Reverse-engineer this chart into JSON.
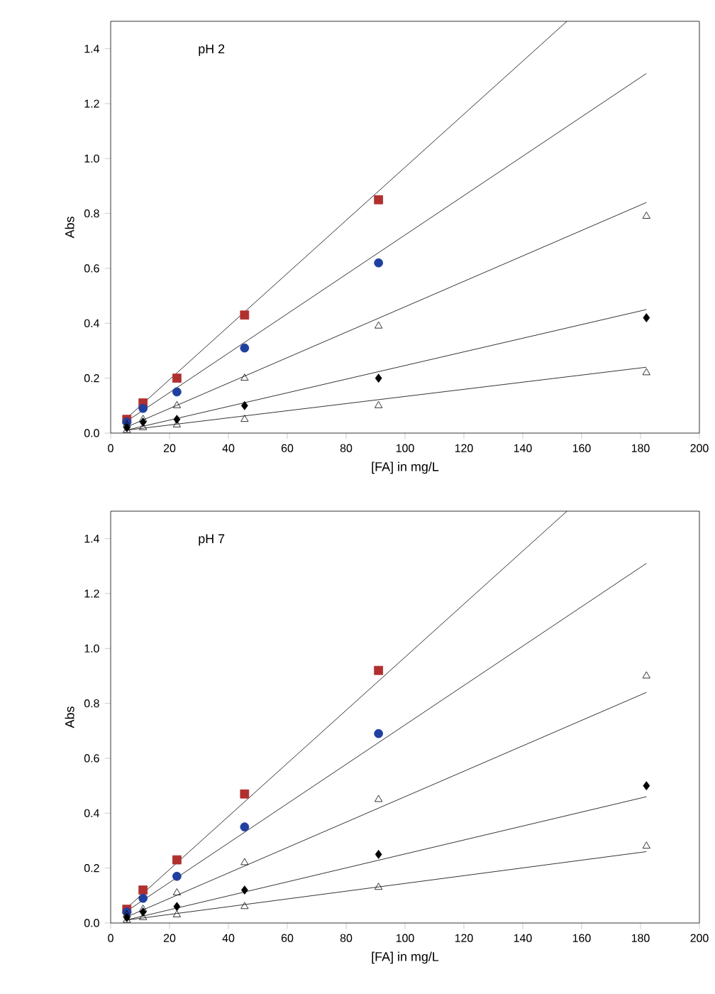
{
  "chart_data": [
    {
      "type": "scatter",
      "xlabel": "[FA] in mg/L",
      "ylabel": "Abs",
      "annotations": [
        "pH 2"
      ],
      "xlim": [
        0,
        200
      ],
      "ylim": [
        0,
        1.5
      ],
      "xticks": [
        0,
        20,
        40,
        60,
        80,
        100,
        120,
        140,
        160,
        180,
        200
      ],
      "yticks": [
        {
          "value": 0,
          "label": "0.0"
        },
        {
          "value": 0.2,
          "label": "0.2"
        },
        {
          "value": 0.4,
          "label": "0.4"
        },
        {
          "value": 0.6,
          "label": "0.6"
        },
        {
          "value": 0.8,
          "label": "0.8"
        },
        {
          "value": 1.0,
          "label": "1.0"
        },
        {
          "value": 1.2,
          "label": "1.2"
        },
        {
          "value": 1.4,
          "label": "1.4"
        }
      ],
      "grid": false,
      "legend": false,
      "x": [
        5.5,
        11,
        22.5,
        45.5,
        91,
        182
      ],
      "series": [
        {
          "marker": "square",
          "color": "#b03030",
          "values": [
            0.05,
            0.11,
            0.2,
            0.43,
            0.85,
            null
          ]
        },
        {
          "marker": "circle",
          "color": "#2040a0",
          "values": [
            0.04,
            0.09,
            0.15,
            0.31,
            0.62,
            null
          ]
        },
        {
          "marker": "triangle",
          "color": "#000000",
          "values": [
            0.03,
            0.05,
            0.1,
            0.2,
            0.39,
            0.79
          ]
        },
        {
          "marker": "diamond",
          "color": "#000000",
          "values": [
            0.02,
            0.04,
            0.05,
            0.1,
            0.2,
            0.42
          ]
        },
        {
          "marker": "triangle",
          "color": "#000000",
          "values": [
            0.01,
            0.02,
            0.03,
            0.05,
            0.1,
            0.22
          ]
        },
        {
          "type": "line",
          "marker": "none",
          "color": "#000000",
          "x": [
            5,
            155
          ],
          "values": [
            0.05,
            1.5
          ]
        },
        {
          "type": "line",
          "marker": "none",
          "color": "#000000",
          "x": [
            5,
            182
          ],
          "values": [
            0.04,
            1.31
          ]
        },
        {
          "type": "line",
          "marker": "none",
          "color": "#000000",
          "x": [
            5,
            182
          ],
          "values": [
            0.02,
            0.84
          ]
        },
        {
          "type": "line",
          "marker": "none",
          "color": "#000000",
          "x": [
            5,
            182
          ],
          "values": [
            0.01,
            0.45
          ]
        },
        {
          "type": "line",
          "marker": "none",
          "color": "#000000",
          "x": [
            5,
            182
          ],
          "values": [
            0.01,
            0.24
          ]
        }
      ]
    },
    {
      "type": "scatter",
      "xlabel": "[FA] in mg/L",
      "ylabel": "Abs",
      "annotations": [
        "pH 7"
      ],
      "xlim": [
        0,
        200
      ],
      "ylim": [
        0,
        1.5
      ],
      "xticks": [
        0,
        20,
        40,
        60,
        80,
        100,
        120,
        140,
        160,
        180,
        200
      ],
      "yticks": [
        {
          "value": 0,
          "label": "0.0"
        },
        {
          "value": 0.2,
          "label": "0.2"
        },
        {
          "value": 0.4,
          "label": "0.4"
        },
        {
          "value": 0.6,
          "label": "0.6"
        },
        {
          "value": 0.8,
          "label": "0.8"
        },
        {
          "value": 1.0,
          "label": "1.0"
        },
        {
          "value": 1.2,
          "label": "1.2"
        },
        {
          "value": 1.4,
          "label": "1.4"
        }
      ],
      "grid": false,
      "legend": false,
      "x": [
        5.5,
        11,
        22.5,
        45.5,
        91,
        182
      ],
      "series": [
        {
          "marker": "square",
          "color": "#b03030",
          "values": [
            0.05,
            0.12,
            0.23,
            0.47,
            0.92,
            null
          ]
        },
        {
          "marker": "circle",
          "color": "#2040a0",
          "values": [
            0.04,
            0.09,
            0.17,
            0.35,
            0.69,
            null
          ]
        },
        {
          "marker": "triangle",
          "color": "#000000",
          "values": [
            0.03,
            0.05,
            0.11,
            0.22,
            0.45,
            0.9
          ]
        },
        {
          "marker": "diamond",
          "color": "#000000",
          "values": [
            0.02,
            0.04,
            0.06,
            0.12,
            0.25,
            0.5
          ]
        },
        {
          "marker": "triangle",
          "color": "#000000",
          "values": [
            0.01,
            0.02,
            0.03,
            0.06,
            0.13,
            0.28
          ]
        },
        {
          "type": "line",
          "marker": "none",
          "color": "#000000",
          "x": [
            5,
            155
          ],
          "values": [
            0.05,
            1.5
          ]
        },
        {
          "type": "line",
          "marker": "none",
          "color": "#000000",
          "x": [
            5,
            182
          ],
          "values": [
            0.04,
            1.31
          ]
        },
        {
          "type": "line",
          "marker": "none",
          "color": "#000000",
          "x": [
            5,
            182
          ],
          "values": [
            0.02,
            0.84
          ]
        },
        {
          "type": "line",
          "marker": "none",
          "color": "#000000",
          "x": [
            5,
            182
          ],
          "values": [
            0.01,
            0.46
          ]
        },
        {
          "type": "line",
          "marker": "none",
          "color": "#000000",
          "x": [
            5,
            182
          ],
          "values": [
            0.01,
            0.26
          ]
        }
      ]
    }
  ]
}
